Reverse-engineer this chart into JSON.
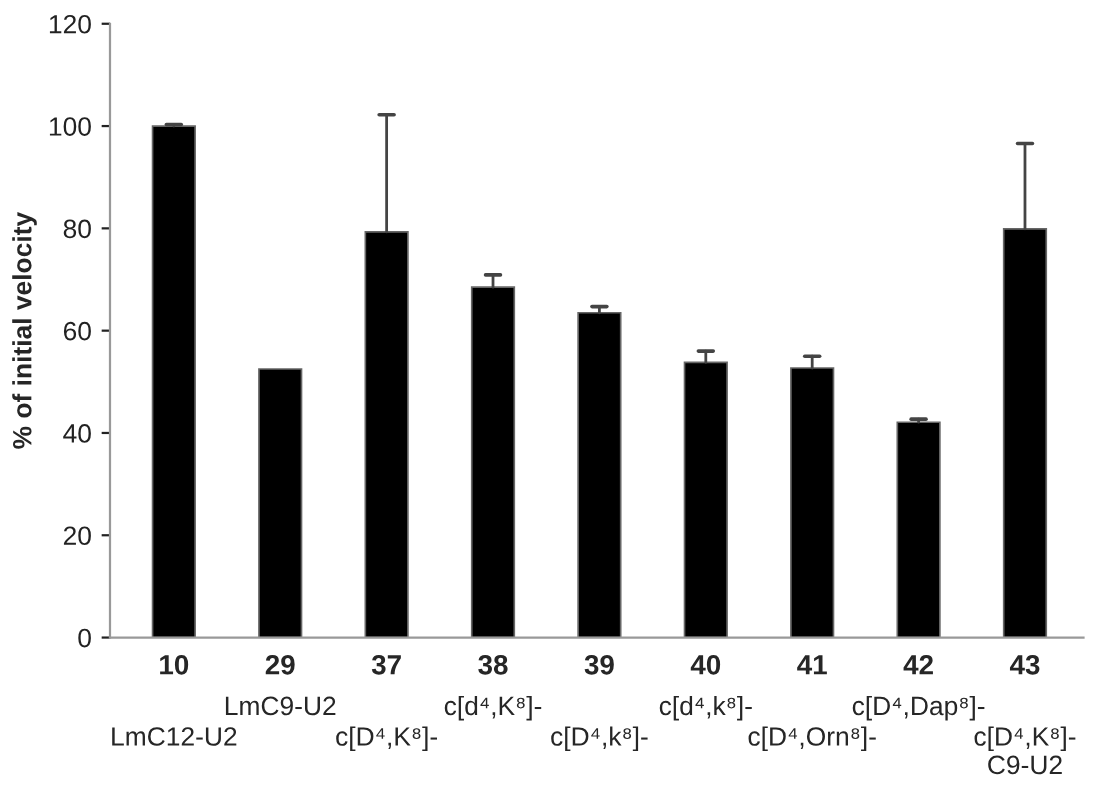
{
  "chart_data": {
    "type": "bar",
    "ylabel": "% of initial velocity",
    "categories": [
      "10",
      "29",
      "37",
      "38",
      "39",
      "40",
      "41",
      "42",
      "43"
    ],
    "values": [
      100,
      52.5,
      79.3,
      68.5,
      63.5,
      53.8,
      52.7,
      42.1,
      79.9
    ],
    "errors": [
      [
        100,
        100.3
      ],
      null,
      [
        79.3,
        102.2
      ],
      [
        68.5,
        70.9
      ],
      [
        63.5,
        64.7
      ],
      [
        53.8,
        56
      ],
      [
        52.7,
        55
      ],
      [
        42.1,
        42.7
      ],
      [
        79.9,
        96.6
      ]
    ],
    "color": "#000000",
    "annotations": [
      "LmC12-U2",
      "LmC9-U2",
      "c[D⁴,K⁸]-",
      "c[d⁴,K⁸]-",
      "c[D⁴,k⁸]-",
      "c[d⁴,k⁸]-",
      "c[D⁴,Orn⁸]-",
      "c[D⁴,Dap⁸]-",
      "c[D⁴,K⁸]-\nC9-U2"
    ],
    "ylim": [
      0,
      120
    ],
    "yticks": [
      0,
      20,
      40,
      60,
      80,
      100,
      120
    ],
    "grid": false,
    "legend": false
  }
}
